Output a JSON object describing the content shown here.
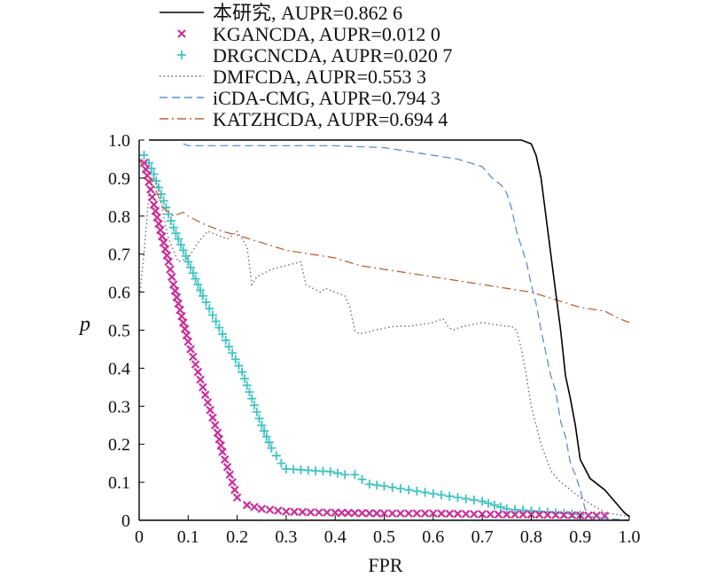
{
  "chart_data": {
    "type": "line",
    "xlabel": "FPR",
    "ylabel": "p",
    "xlim": [
      0,
      1
    ],
    "ylim": [
      0,
      1
    ],
    "xticks": [
      "0",
      "0.1",
      "0.2",
      "0.3",
      "0.4",
      "0.5",
      "0.6",
      "0.7",
      "0.8",
      "0.9",
      "1.0"
    ],
    "yticks": [
      "0",
      "0.1",
      "0.2",
      "0.3",
      "0.4",
      "0.5",
      "0.6",
      "0.7",
      "0.8",
      "0.9",
      "1.0"
    ],
    "grid": false,
    "legend_position": "top",
    "series": [
      {
        "name": "本研究, AUPR=0.862 6",
        "color": "#000000",
        "style": "solid",
        "x": [
          0.02,
          0.1,
          0.2,
          0.3,
          0.4,
          0.5,
          0.6,
          0.65,
          0.7,
          0.75,
          0.78,
          0.8,
          0.81,
          0.82,
          0.83,
          0.84,
          0.85,
          0.86,
          0.87,
          0.88,
          0.89,
          0.9,
          0.92,
          0.95,
          0.97,
          0.99,
          1.0
        ],
        "y": [
          1.0,
          1.0,
          1.0,
          1.0,
          1.0,
          1.0,
          1.0,
          1.0,
          1.0,
          1.0,
          1.0,
          0.99,
          0.96,
          0.9,
          0.8,
          0.7,
          0.6,
          0.5,
          0.38,
          0.32,
          0.25,
          0.16,
          0.11,
          0.08,
          0.05,
          0.02,
          0.01
        ]
      },
      {
        "name": "KGANCDA, AUPR=0.012 0",
        "color": "#cc2e9c",
        "style": "x-marker",
        "x": [
          0.01,
          0.02,
          0.03,
          0.04,
          0.05,
          0.06,
          0.07,
          0.08,
          0.09,
          0.1,
          0.11,
          0.12,
          0.13,
          0.14,
          0.15,
          0.16,
          0.17,
          0.18,
          0.19,
          0.2,
          0.22,
          0.25,
          0.3,
          0.35,
          0.4,
          0.44,
          0.5,
          0.55,
          0.6,
          0.65,
          0.7,
          0.75,
          0.8,
          0.85,
          0.9,
          0.95
        ],
        "y": [
          0.94,
          0.89,
          0.83,
          0.78,
          0.73,
          0.68,
          0.62,
          0.57,
          0.52,
          0.47,
          0.43,
          0.39,
          0.35,
          0.31,
          0.27,
          0.23,
          0.18,
          0.14,
          0.1,
          0.06,
          0.04,
          0.03,
          0.023,
          0.021,
          0.02,
          0.019,
          0.018,
          0.018,
          0.018,
          0.017,
          0.016,
          0.015,
          0.015,
          0.014,
          0.013,
          0.012
        ]
      },
      {
        "name": "DRGCNCDA, AUPR=0.020 7",
        "color": "#3ec3c3",
        "style": "plus-marker",
        "x": [
          0.01,
          0.02,
          0.03,
          0.05,
          0.07,
          0.09,
          0.11,
          0.13,
          0.15,
          0.17,
          0.19,
          0.21,
          0.23,
          0.25,
          0.27,
          0.29,
          0.3,
          0.33,
          0.36,
          0.39,
          0.42,
          0.44,
          0.47,
          0.5,
          0.55,
          0.6,
          0.65,
          0.7,
          0.75,
          0.8,
          0.85,
          0.9
        ],
        "y": [
          0.96,
          0.94,
          0.91,
          0.84,
          0.77,
          0.71,
          0.65,
          0.59,
          0.54,
          0.49,
          0.44,
          0.39,
          0.32,
          0.25,
          0.19,
          0.15,
          0.135,
          0.133,
          0.13,
          0.128,
          0.12,
          0.12,
          0.095,
          0.09,
          0.08,
          0.07,
          0.06,
          0.05,
          0.03,
          0.025,
          0.02,
          0.015
        ]
      },
      {
        "name": "DMFCDA, AUPR=0.553 3",
        "color": "#666666",
        "style": "dotted",
        "x": [
          0.0,
          0.01,
          0.02,
          0.03,
          0.04,
          0.05,
          0.06,
          0.08,
          0.1,
          0.12,
          0.14,
          0.16,
          0.18,
          0.2,
          0.21,
          0.22,
          0.23,
          0.24,
          0.27,
          0.3,
          0.33,
          0.34,
          0.37,
          0.38,
          0.4,
          0.42,
          0.43,
          0.44,
          0.45,
          0.48,
          0.52,
          0.55,
          0.6,
          0.62,
          0.63,
          0.64,
          0.66,
          0.7,
          0.75,
          0.76,
          0.77,
          0.78,
          0.79,
          0.8,
          0.82,
          0.84,
          0.86,
          0.9,
          0.95,
          1.0
        ],
        "y": [
          0.58,
          0.7,
          0.86,
          0.9,
          0.87,
          0.8,
          0.74,
          0.68,
          0.69,
          0.73,
          0.76,
          0.75,
          0.74,
          0.76,
          0.74,
          0.72,
          0.62,
          0.64,
          0.66,
          0.67,
          0.68,
          0.62,
          0.6,
          0.61,
          0.6,
          0.59,
          0.56,
          0.5,
          0.49,
          0.5,
          0.51,
          0.51,
          0.52,
          0.53,
          0.51,
          0.5,
          0.51,
          0.52,
          0.51,
          0.51,
          0.5,
          0.45,
          0.38,
          0.3,
          0.2,
          0.13,
          0.1,
          0.06,
          0.02,
          0.01
        ]
      },
      {
        "name": "iCDA-CMG, AUPR=0.794 3",
        "color": "#5b8fd0",
        "style": "dashed",
        "x": [
          0.09,
          0.1,
          0.2,
          0.3,
          0.4,
          0.5,
          0.55,
          0.6,
          0.65,
          0.7,
          0.72,
          0.74,
          0.75,
          0.76,
          0.77,
          0.78,
          0.79,
          0.8,
          0.81,
          0.82,
          0.83,
          0.84,
          0.85,
          0.86,
          0.87,
          0.88,
          0.89,
          0.9,
          0.91,
          0.92,
          0.95,
          1.0
        ],
        "y": [
          0.99,
          0.985,
          0.985,
          0.985,
          0.985,
          0.98,
          0.97,
          0.96,
          0.95,
          0.93,
          0.9,
          0.88,
          0.86,
          0.82,
          0.76,
          0.72,
          0.68,
          0.62,
          0.57,
          0.5,
          0.44,
          0.38,
          0.34,
          0.26,
          0.22,
          0.15,
          0.12,
          0.08,
          0.03,
          0.01,
          0.005,
          0.0
        ]
      },
      {
        "name": "KATZHCDA, AUPR=0.694 4",
        "color": "#c0603a",
        "style": "dashdot",
        "x": [
          0.0,
          0.03,
          0.05,
          0.07,
          0.09,
          0.1,
          0.13,
          0.15,
          0.17,
          0.2,
          0.25,
          0.3,
          0.35,
          0.4,
          0.45,
          0.5,
          0.55,
          0.6,
          0.65,
          0.7,
          0.75,
          0.8,
          0.85,
          0.9,
          0.95,
          0.98,
          1.0
        ],
        "y": [
          0.95,
          0.88,
          0.82,
          0.8,
          0.81,
          0.8,
          0.78,
          0.77,
          0.76,
          0.75,
          0.73,
          0.71,
          0.7,
          0.69,
          0.67,
          0.66,
          0.65,
          0.64,
          0.63,
          0.62,
          0.61,
          0.6,
          0.58,
          0.56,
          0.55,
          0.53,
          0.52
        ]
      }
    ]
  }
}
